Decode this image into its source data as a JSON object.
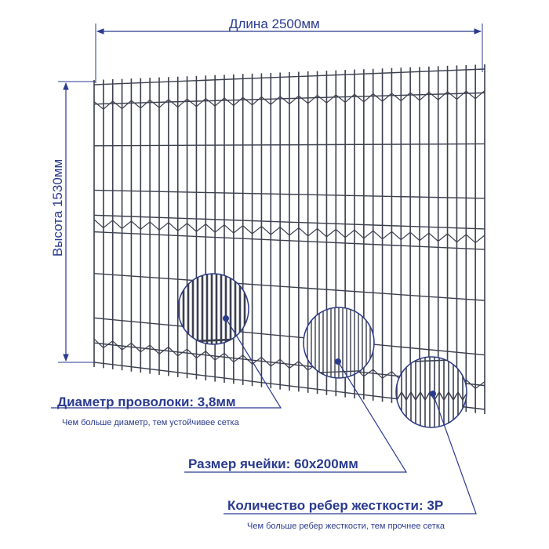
{
  "dimensions": {
    "length": "Длина 2500мм",
    "height": "Высота 1530мм"
  },
  "callouts": [
    {
      "title": "Диаметр проволоки: 3,8мм",
      "note": "Чем больше диаметр, тем устойчивее сетка"
    },
    {
      "title": "Размер ячейки: 60x200мм",
      "note": ""
    },
    {
      "title": "Количество ребер жесткости: 3Р",
      "note": "Чем больше ребер жесткости, тем прочнее сетка"
    }
  ],
  "colors": {
    "accent": "#2a3a8f",
    "wire": "#3b3f4e",
    "leader": "#2a3a8f"
  }
}
